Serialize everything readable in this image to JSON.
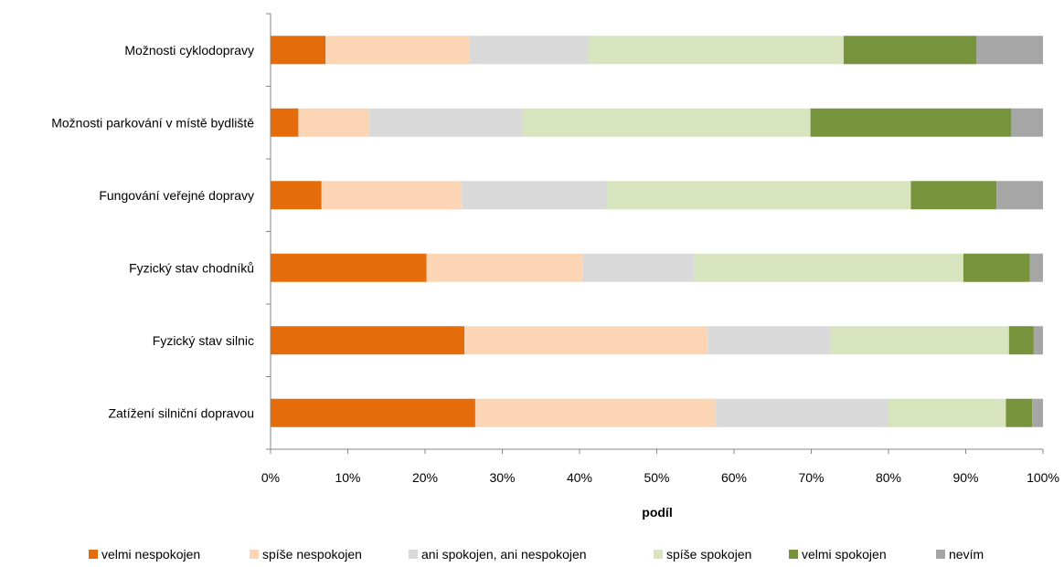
{
  "chart_data": {
    "type": "bar",
    "orientation": "horizontal",
    "stacked": "percent",
    "categories": [
      "Možnosti cyklodopravy",
      "Možnosti parkování v místě bydliště",
      "Fungování veřejné dopravy",
      "Fyzický stav chodníků",
      "Fyzický stav silnic",
      "Zatížení silniční dopravou"
    ],
    "series": [
      {
        "name": "velmi nespokojen",
        "color": "#E46C0A",
        "values": [
          7.1,
          3.6,
          6.6,
          20.2,
          25.1,
          26.5
        ]
      },
      {
        "name": "spíše nespokojen",
        "color": "#FCD5B5",
        "values": [
          18.7,
          9.2,
          18.1,
          20.2,
          31.5,
          31.1
        ]
      },
      {
        "name": "ani spokojen, ani nespokojen",
        "color": "#D9D9D9",
        "values": [
          15.4,
          19.9,
          18.9,
          14.4,
          15.9,
          22.4
        ]
      },
      {
        "name": "spíše spokojen",
        "color": "#D7E4BD",
        "values": [
          33.0,
          37.2,
          39.3,
          34.9,
          23.1,
          15.2
        ]
      },
      {
        "name": "velmi spokojen",
        "color": "#77933C",
        "values": [
          17.2,
          26.0,
          11.1,
          8.6,
          3.2,
          3.4
        ]
      },
      {
        "name": "nevím",
        "color": "#A6A6A6",
        "values": [
          8.6,
          4.1,
          6.0,
          1.7,
          1.2,
          1.4
        ]
      }
    ],
    "xlabel": "podíl",
    "ylabel": "",
    "xlim": [
      0,
      100
    ],
    "xticks": [
      "0%",
      "10%",
      "20%",
      "30%",
      "40%",
      "50%",
      "60%",
      "70%",
      "80%",
      "90%",
      "100%"
    ],
    "grid": false,
    "legend_position": "bottom"
  }
}
